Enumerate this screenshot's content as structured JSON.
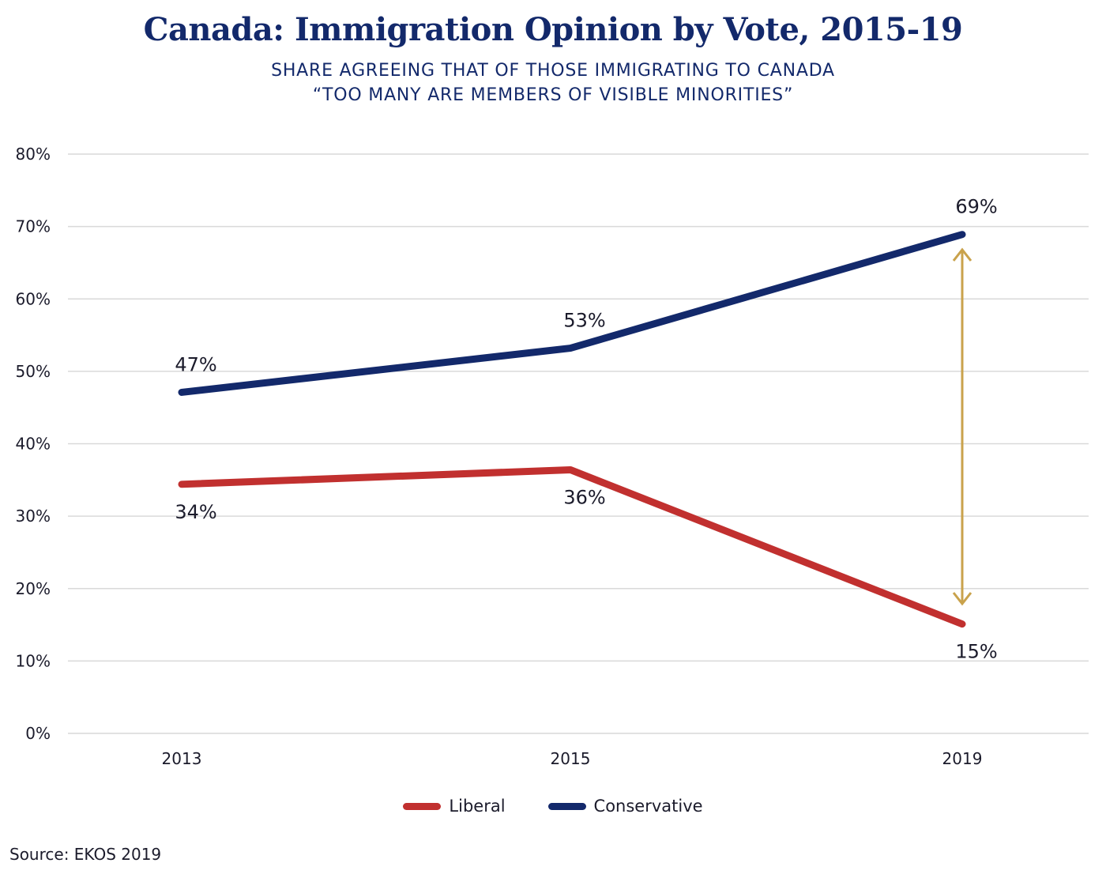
{
  "title": "Canada: Immigration Opinion by Vote, 2015-19",
  "subtitle_lines": [
    "SHARE AGREEING THAT OF THOSE IMMIGRATING TO CANADA",
    "“TOO MANY ARE MEMBERS OF VISIBLE MINORITIES”"
  ],
  "source": "Source: EKOS 2019",
  "colors": {
    "liberal": "#c1302f",
    "conservative": "#13296b",
    "arrow": "#c9a24c",
    "grid": "#d9d9d9"
  },
  "chart_data": {
    "type": "line",
    "title": "Canada: Immigration Opinion by Vote, 2015-19",
    "categories": [
      "2013",
      "2015",
      "2019"
    ],
    "xlabel": "",
    "ylabel": "",
    "ylim": [
      0,
      80
    ],
    "yticks": [
      "0%",
      "10%",
      "20%",
      "30%",
      "40%",
      "50%",
      "60%",
      "70%",
      "80%"
    ],
    "grid": true,
    "legend_position": "bottom-center",
    "series": [
      {
        "name": "Liberal",
        "values": [
          34.4,
          36.4,
          15.1
        ],
        "labels": [
          "34%",
          "36%",
          "15%"
        ],
        "color": "#c1302f"
      },
      {
        "name": "Conservative",
        "values": [
          47.1,
          53.2,
          68.9
        ],
        "labels": [
          "47%",
          "53%",
          "69%"
        ],
        "color": "#13296b"
      }
    ],
    "annotation": {
      "type": "double-arrow",
      "category": "2019",
      "from": 66.8,
      "to": 17.9,
      "color": "#c9a24c"
    }
  }
}
